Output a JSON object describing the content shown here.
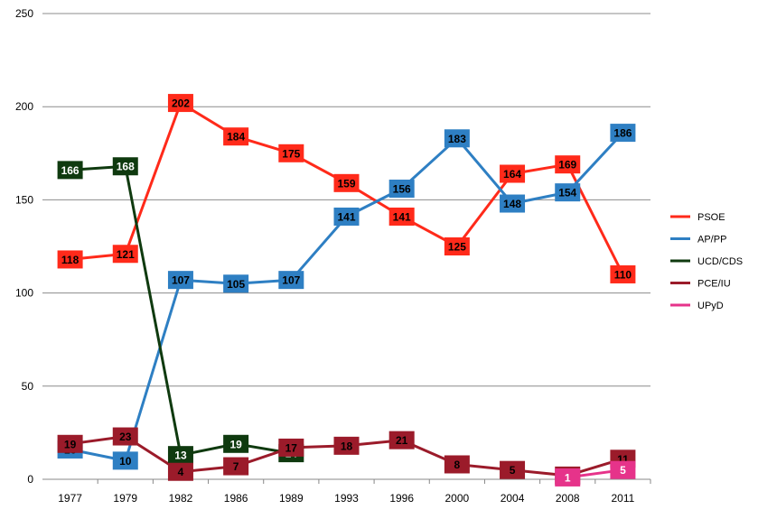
{
  "chart_data": {
    "type": "line",
    "title": "",
    "xlabel": "",
    "ylabel": "",
    "ylim": [
      0,
      250
    ],
    "yticks": [
      0,
      50,
      100,
      150,
      200,
      250
    ],
    "grid": true,
    "legend_position": "right",
    "categories": [
      "1977",
      "1979",
      "1982",
      "1986",
      "1989",
      "1993",
      "1996",
      "2000",
      "2004",
      "2008",
      "2011"
    ],
    "series": [
      {
        "name": "PSOE",
        "color": "#ff2a1a",
        "label_color": "#000000",
        "values": [
          118,
          121,
          202,
          184,
          175,
          159,
          141,
          125,
          164,
          169,
          110
        ]
      },
      {
        "name": "AP/PP",
        "color": "#2e7fc3",
        "label_color": "#000000",
        "values": [
          16,
          10,
          107,
          105,
          107,
          141,
          156,
          183,
          148,
          154,
          186
        ]
      },
      {
        "name": "UCD/CDS",
        "color": "#0f3a0f",
        "label_color": "#ffffff",
        "values": [
          166,
          168,
          13,
          19,
          14,
          null,
          null,
          null,
          null,
          null,
          null
        ]
      },
      {
        "name": "PCE/IU",
        "color": "#9b1b2a",
        "label_color": "#000000",
        "values": [
          19,
          23,
          4,
          7,
          17,
          18,
          21,
          8,
          5,
          2,
          11
        ]
      },
      {
        "name": "UPyD",
        "color": "#e6338a",
        "label_color": "#ffffff",
        "values": [
          null,
          null,
          null,
          null,
          null,
          null,
          null,
          null,
          null,
          1,
          5
        ]
      }
    ]
  }
}
